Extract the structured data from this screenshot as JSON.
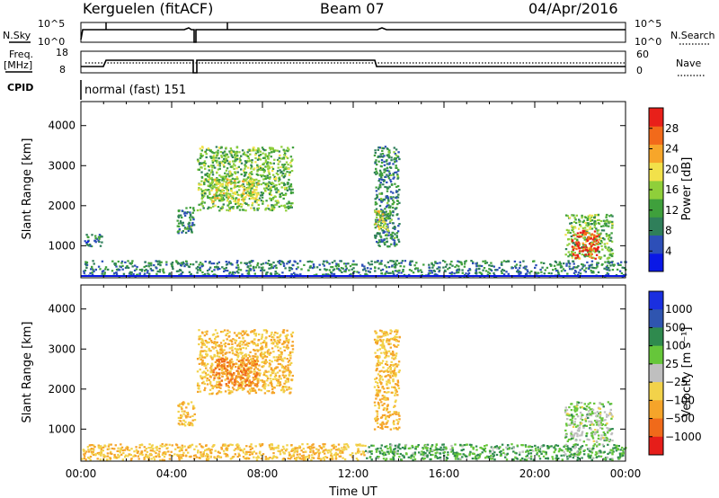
{
  "header": {
    "station": "Kerguelen (fitACF)",
    "beam": "Beam 07",
    "date": "04/Apr/2016"
  },
  "status_panels": {
    "nsky": {
      "label": "N.Sky",
      "ticks": [
        "10^5",
        "10^0"
      ],
      "right_ticks": [
        "10^5",
        "10^0"
      ],
      "right_label": "N.Search"
    },
    "freq": {
      "label_1": "Freq.",
      "label_2": "[MHz]",
      "ticks": [
        "18",
        "8"
      ],
      "right_ticks": [
        "60",
        "0"
      ],
      "right_label": "Nave"
    },
    "cpid": {
      "label": "CPID",
      "value": "normal (fast) 151"
    }
  },
  "colors": {
    "power": [
      "#0a18e6",
      "#2d4fb8",
      "#2f7f5a",
      "#3fa03c",
      "#8fcf3a",
      "#f2e14a",
      "#f7a62a",
      "#f26a1a",
      "#e8201a"
    ],
    "velocity": [
      "#1a2fe0",
      "#2f55b0",
      "#2f8a4e",
      "#66c63a",
      "#bfbfbf",
      "#f2d24a",
      "#f5a42a",
      "#f06a1a",
      "#e61e1a"
    ]
  },
  "chart_data": [
    {
      "type": "heatmap",
      "name": "power",
      "xlabel": "",
      "ylabel": "Slant Range [km]",
      "xlim": [
        0,
        24
      ],
      "ylim": [
        200,
        4600
      ],
      "yticks": [
        1000,
        2000,
        3000,
        4000
      ],
      "colorbar": {
        "label": "Power [dB]",
        "ticks": [
          "4",
          "8",
          "12",
          "16",
          "20",
          "24",
          "28"
        ],
        "range": [
          0,
          32
        ]
      },
      "regions": [
        {
          "x": [
            0.0,
            24.0
          ],
          "y": [
            250,
            650
          ],
          "value": 9
        },
        {
          "x": [
            0.1,
            0.9
          ],
          "y": [
            1000,
            1300
          ],
          "value": 8
        },
        {
          "x": [
            4.2,
            5.0
          ],
          "y": [
            1300,
            2000
          ],
          "value": 10
        },
        {
          "x": [
            5.1,
            9.3
          ],
          "y": [
            1900,
            3500
          ],
          "value": 14
        },
        {
          "x": [
            5.8,
            7.8
          ],
          "y": [
            2100,
            2700
          ],
          "value": 18
        },
        {
          "x": [
            12.9,
            14.0
          ],
          "y": [
            1000,
            3500
          ],
          "value": 10
        },
        {
          "x": [
            12.9,
            13.6
          ],
          "y": [
            1400,
            1900
          ],
          "value": 18
        },
        {
          "x": [
            21.3,
            23.4
          ],
          "y": [
            700,
            1800
          ],
          "value": 14
        },
        {
          "x": [
            21.6,
            22.8
          ],
          "y": [
            700,
            1400
          ],
          "value": 28
        }
      ]
    },
    {
      "type": "heatmap",
      "name": "velocity",
      "xlabel": "Time UT",
      "ylabel": "Slant Range [km]",
      "xlim": [
        0,
        24
      ],
      "ylim": [
        200,
        4600
      ],
      "yticks": [
        1000,
        2000,
        3000,
        4000
      ],
      "xticks": [
        "00:00",
        "04:00",
        "08:00",
        "12:00",
        "16:00",
        "20:00",
        "00:00"
      ],
      "colorbar": {
        "label": "Velocity [m s⁻¹]",
        "ticks": [
          "1000",
          "500",
          "100",
          "25",
          "−25",
          "−100",
          "−500",
          "−1000"
        ]
      },
      "regions": [
        {
          "x": [
            0.0,
            12.5
          ],
          "y": [
            250,
            650
          ],
          "value": -100
        },
        {
          "x": [
            12.5,
            24.0
          ],
          "y": [
            250,
            650
          ],
          "value": 25
        },
        {
          "x": [
            4.2,
            5.0
          ],
          "y": [
            1100,
            1700
          ],
          "value": -100
        },
        {
          "x": [
            5.1,
            9.3
          ],
          "y": [
            1900,
            3500
          ],
          "value": -100
        },
        {
          "x": [
            5.8,
            7.8
          ],
          "y": [
            2100,
            2800
          ],
          "value": -500
        },
        {
          "x": [
            12.9,
            14.0
          ],
          "y": [
            1000,
            3500
          ],
          "value": -100
        },
        {
          "x": [
            21.3,
            23.4
          ],
          "y": [
            700,
            1700
          ],
          "value": 0
        }
      ]
    }
  ]
}
